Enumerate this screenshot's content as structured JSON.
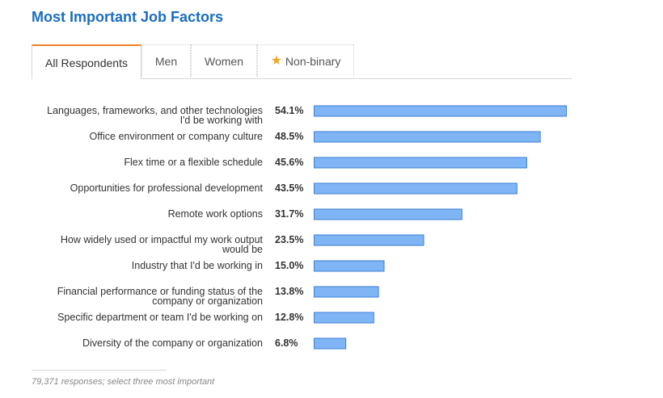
{
  "header": {
    "title": "Most Important Job Factors"
  },
  "tabs": [
    {
      "label": "All Respondents",
      "active": true
    },
    {
      "label": "Men",
      "active": false
    },
    {
      "label": "Women",
      "active": false
    },
    {
      "label": "Non-binary",
      "active": false,
      "icon": "star-icon"
    }
  ],
  "chart_data": {
    "type": "bar",
    "orientation": "horizontal",
    "categories": [
      [
        "Languages, frameworks, and other technologies",
        "I'd be working with"
      ],
      [
        "Office environment or company culture"
      ],
      [
        "Flex time or a flexible schedule"
      ],
      [
        "Opportunities for professional development"
      ],
      [
        "Remote work options"
      ],
      [
        "How widely used or impactful my work output",
        "would be"
      ],
      [
        "Industry that I'd be working in"
      ],
      [
        "Financial performance or funding status of the",
        "company or organization"
      ],
      [
        "Specific department or team I'd be working on"
      ],
      [
        "Diversity of the company or organization"
      ]
    ],
    "values": [
      54.1,
      48.5,
      45.6,
      43.5,
      31.7,
      23.5,
      15.0,
      13.8,
      12.8,
      6.8
    ],
    "value_labels": [
      "54.1%",
      "48.5%",
      "45.6%",
      "43.5%",
      "31.7%",
      "23.5%",
      "15.0%",
      "13.8%",
      "12.8%",
      "6.8%"
    ],
    "unit": "%",
    "grid": false,
    "colors": {
      "bar_fill": "#7fb5f5",
      "bar_border": "#3f7fd4"
    }
  },
  "footnote": "79,371 responses; select three most important",
  "colors": {
    "title": "#1a6dc0",
    "active_tab_accent": "#f48024",
    "star": "#f4a623"
  }
}
